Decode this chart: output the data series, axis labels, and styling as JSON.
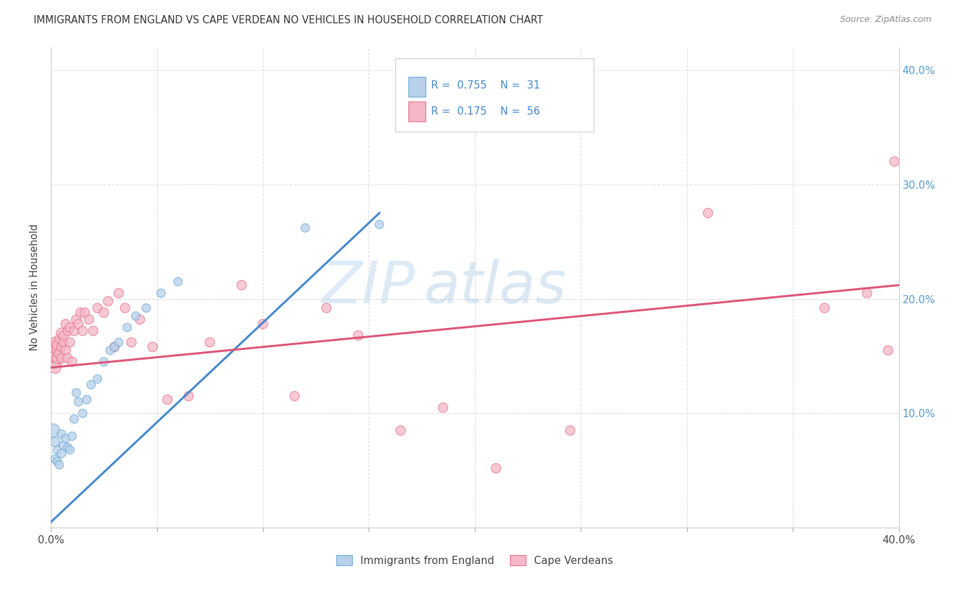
{
  "title": "IMMIGRANTS FROM ENGLAND VS CAPE VERDEAN NO VEHICLES IN HOUSEHOLD CORRELATION CHART",
  "source": "Source: ZipAtlas.com",
  "ylabel": "No Vehicles in Household",
  "xlim": [
    0.0,
    0.4
  ],
  "ylim": [
    0.0,
    0.42
  ],
  "legend_R1": "0.755",
  "legend_N1": "31",
  "legend_R2": "0.175",
  "legend_N2": "56",
  "legend_label1": "Immigrants from England",
  "legend_label2": "Cape Verdeans",
  "color_england_fill": "#b8d0ea",
  "color_england_edge": "#6aaad4",
  "color_capeverde_fill": "#f5b8c8",
  "color_capeverde_edge": "#e8708a",
  "color_line_england": "#4488cc",
  "color_line_capeverde": "#dd5577",
  "color_legend_text": "#4488cc",
  "color_right_yaxis": "#5599cc",
  "watermark_zip": "ZIP",
  "watermark_atlas": "atlas",
  "england_line_x": [
    0.0,
    0.155
  ],
  "england_line_y": [
    0.005,
    0.275
  ],
  "capeverde_line_x": [
    0.0,
    0.4
  ],
  "capeverde_line_y": [
    0.14,
    0.212
  ],
  "england_x": [
    0.001,
    0.002,
    0.002,
    0.003,
    0.003,
    0.004,
    0.005,
    0.005,
    0.006,
    0.007,
    0.008,
    0.009,
    0.01,
    0.011,
    0.012,
    0.013,
    0.015,
    0.017,
    0.019,
    0.022,
    0.025,
    0.028,
    0.03,
    0.032,
    0.036,
    0.04,
    0.045,
    0.052,
    0.06,
    0.12,
    0.155
  ],
  "england_y": [
    0.085,
    0.075,
    0.06,
    0.058,
    0.068,
    0.055,
    0.065,
    0.082,
    0.072,
    0.078,
    0.07,
    0.068,
    0.08,
    0.095,
    0.118,
    0.11,
    0.1,
    0.112,
    0.125,
    0.13,
    0.145,
    0.155,
    0.158,
    0.162,
    0.175,
    0.185,
    0.192,
    0.205,
    0.215,
    0.262,
    0.265
  ],
  "england_sizes": [
    200,
    100,
    80,
    80,
    80,
    80,
    80,
    80,
    80,
    80,
    80,
    80,
    80,
    80,
    80,
    80,
    80,
    80,
    80,
    80,
    80,
    80,
    80,
    80,
    80,
    80,
    80,
    80,
    80,
    80,
    80
  ],
  "capeverde_x": [
    0.001,
    0.001,
    0.001,
    0.002,
    0.002,
    0.003,
    0.003,
    0.003,
    0.004,
    0.004,
    0.005,
    0.005,
    0.005,
    0.006,
    0.006,
    0.007,
    0.007,
    0.008,
    0.008,
    0.009,
    0.009,
    0.01,
    0.011,
    0.012,
    0.013,
    0.014,
    0.015,
    0.016,
    0.018,
    0.02,
    0.022,
    0.025,
    0.027,
    0.03,
    0.032,
    0.035,
    0.038,
    0.042,
    0.048,
    0.055,
    0.065,
    0.075,
    0.09,
    0.1,
    0.115,
    0.13,
    0.145,
    0.165,
    0.185,
    0.21,
    0.245,
    0.31,
    0.365,
    0.385,
    0.395,
    0.398
  ],
  "capeverde_y": [
    0.148,
    0.152,
    0.158,
    0.14,
    0.162,
    0.148,
    0.155,
    0.16,
    0.152,
    0.165,
    0.148,
    0.158,
    0.17,
    0.162,
    0.168,
    0.155,
    0.178,
    0.148,
    0.172,
    0.162,
    0.175,
    0.145,
    0.172,
    0.182,
    0.178,
    0.188,
    0.172,
    0.188,
    0.182,
    0.172,
    0.192,
    0.188,
    0.198,
    0.158,
    0.205,
    0.192,
    0.162,
    0.182,
    0.158,
    0.112,
    0.115,
    0.162,
    0.212,
    0.178,
    0.115,
    0.192,
    0.168,
    0.085,
    0.105,
    0.052,
    0.085,
    0.275,
    0.192,
    0.205,
    0.155,
    0.32
  ],
  "capeverde_sizes": [
    450,
    250,
    150,
    150,
    120,
    120,
    120,
    120,
    120,
    100,
    100,
    100,
    120,
    100,
    100,
    100,
    100,
    100,
    100,
    100,
    100,
    100,
    100,
    100,
    100,
    100,
    100,
    100,
    100,
    100,
    100,
    100,
    100,
    100,
    100,
    100,
    100,
    100,
    100,
    100,
    100,
    100,
    100,
    100,
    100,
    100,
    100,
    100,
    100,
    100,
    100,
    100,
    100,
    100,
    100,
    100
  ]
}
